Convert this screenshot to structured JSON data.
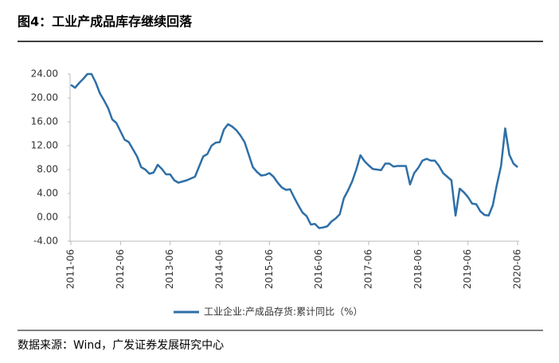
{
  "chart_data": {
    "type": "line",
    "title": "图4：工业产成品库存继续回落",
    "source": "数据来源：Wind，广发证券发展研究中心",
    "x": [
      "2011-06",
      "2011-07",
      "2011-08",
      "2011-09",
      "2011-10",
      "2011-11",
      "2011-12",
      "2012-01",
      "2012-02",
      "2012-03",
      "2012-04",
      "2012-05",
      "2012-06",
      "2012-07",
      "2012-08",
      "2012-09",
      "2012-10",
      "2012-11",
      "2012-12",
      "2013-01",
      "2013-02",
      "2013-03",
      "2013-04",
      "2013-05",
      "2013-06",
      "2013-07",
      "2013-08",
      "2013-09",
      "2013-10",
      "2013-11",
      "2013-12",
      "2014-01",
      "2014-02",
      "2014-03",
      "2014-04",
      "2014-05",
      "2014-06",
      "2014-07",
      "2014-08",
      "2014-09",
      "2014-10",
      "2014-11",
      "2014-12",
      "2015-01",
      "2015-02",
      "2015-03",
      "2015-04",
      "2015-05",
      "2015-06",
      "2015-07",
      "2015-08",
      "2015-09",
      "2015-10",
      "2015-11",
      "2015-12",
      "2016-01",
      "2016-02",
      "2016-03",
      "2016-04",
      "2016-05",
      "2016-06",
      "2016-07",
      "2016-08",
      "2016-09",
      "2016-10",
      "2016-11",
      "2016-12",
      "2017-01",
      "2017-02",
      "2017-03",
      "2017-04",
      "2017-05",
      "2017-06",
      "2017-07",
      "2017-08",
      "2017-09",
      "2017-10",
      "2017-11",
      "2017-12",
      "2018-01",
      "2018-02",
      "2018-03",
      "2018-04",
      "2018-05",
      "2018-06",
      "2018-07",
      "2018-08",
      "2018-09",
      "2018-10",
      "2018-11",
      "2018-12",
      "2019-01",
      "2019-02",
      "2019-03",
      "2019-04",
      "2019-05",
      "2019-06",
      "2019-07",
      "2019-08",
      "2019-09",
      "2019-10",
      "2019-11",
      "2019-12",
      "2020-01",
      "2020-02",
      "2020-03",
      "2020-04",
      "2020-05",
      "2020-06"
    ],
    "series": [
      {
        "name": "工业企业:产成品存货:累计同比（%）",
        "color": "#2e6fa7",
        "values": [
          22.2,
          21.7,
          22.5,
          23.2,
          24.0,
          24.0,
          22.6,
          20.8,
          19.6,
          18.3,
          16.4,
          15.8,
          14.4,
          13.0,
          12.6,
          11.4,
          10.2,
          8.4,
          8.0,
          7.3,
          7.5,
          8.8,
          8.1,
          7.2,
          7.2,
          6.2,
          5.8,
          6.0,
          6.2,
          6.5,
          6.8,
          8.5,
          10.2,
          10.6,
          12.0,
          12.5,
          12.6,
          14.7,
          15.6,
          15.2,
          14.6,
          13.7,
          12.6,
          10.5,
          8.4,
          7.6,
          7.0,
          7.1,
          7.4,
          6.8,
          5.8,
          5.0,
          4.6,
          4.7,
          3.3,
          2.0,
          0.8,
          0.2,
          -1.2,
          -1.1,
          -1.8,
          -1.7,
          -1.5,
          -0.7,
          -0.2,
          0.5,
          3.2,
          4.5,
          6.0,
          8.0,
          10.4,
          9.4,
          8.7,
          8.1,
          8.0,
          7.9,
          9.0,
          9.0,
          8.5,
          8.6,
          8.6,
          8.6,
          5.5,
          7.4,
          8.3,
          9.5,
          9.8,
          9.5,
          9.5,
          8.6,
          7.4,
          6.8,
          6.2,
          0.3,
          4.8,
          4.2,
          3.4,
          2.3,
          2.2,
          1.0,
          0.4,
          0.3,
          2.0,
          5.5,
          8.6,
          14.9,
          10.5,
          9.0,
          8.4
        ]
      }
    ],
    "ylim": [
      -4,
      24
    ],
    "yticks": [
      {
        "value": 24,
        "label": "24.00"
      },
      {
        "value": 20,
        "label": "20.00"
      },
      {
        "value": 16,
        "label": "16.00"
      },
      {
        "value": 12,
        "label": "12.00"
      },
      {
        "value": 8,
        "label": "8.00"
      },
      {
        "value": 4,
        "label": "4.00"
      },
      {
        "value": 0,
        "label": "0.00"
      },
      {
        "value": -4,
        "label": "-4.00"
      }
    ],
    "grid": false,
    "legend": "bottom"
  }
}
